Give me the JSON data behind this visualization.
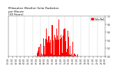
{
  "title": "Milwaukee Weather Solar Radiation per Minute (24 Hours)",
  "bar_color": "#ff0000",
  "background_color": "#ffffff",
  "grid_color": "#888888",
  "num_points": 1440,
  "ylim": [
    0,
    1
  ],
  "xlim": [
    0,
    1440
  ],
  "legend_label": "Solar Rad",
  "legend_color": "#ff0000",
  "title_fontsize": 3.0,
  "tick_fontsize": 2.2,
  "sunrise": 380,
  "sunset": 1060
}
